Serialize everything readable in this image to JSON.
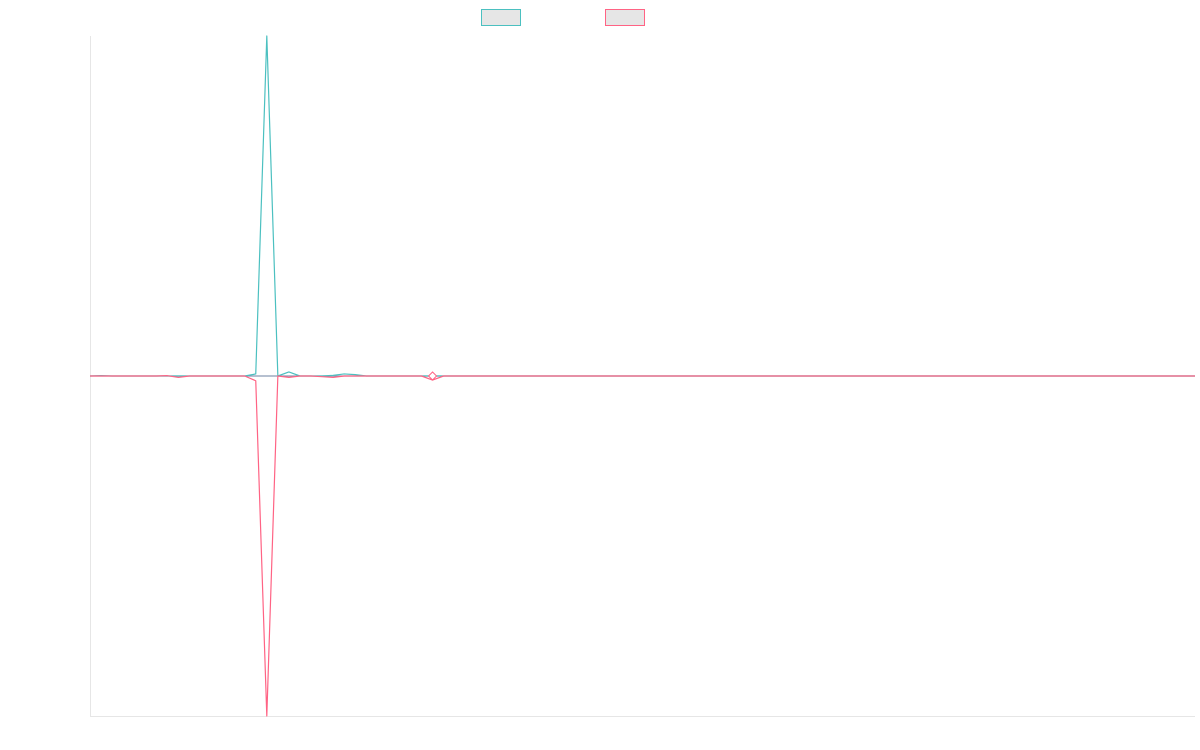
{
  "colors": {
    "series_a": "#4bc0c0",
    "series_b": "#ff6384",
    "legend_box_fill": "#e6e6e6",
    "axis": "#e6e6e6",
    "baseline": "#8a9bb4"
  },
  "chart_data": {
    "type": "line",
    "title": "",
    "xlabel": "",
    "ylabel": "",
    "grid": false,
    "legend_position": "top-center",
    "xlim": [
      0,
      100
    ],
    "ylim": [
      -50,
      50
    ],
    "x": [
      0,
      1,
      2,
      3,
      4,
      5,
      6,
      7,
      8,
      9,
      10,
      11,
      12,
      13,
      14,
      15,
      16,
      17,
      18,
      19,
      20,
      21,
      22,
      23,
      24,
      25,
      26,
      27,
      28,
      29,
      30,
      31,
      32,
      33,
      34,
      35,
      36,
      37,
      38,
      39,
      40,
      41,
      42,
      43,
      44,
      45,
      46,
      47,
      48,
      49,
      50,
      51,
      52,
      53,
      54,
      55,
      56,
      57,
      58,
      59,
      60,
      61,
      62,
      63,
      64,
      65,
      66,
      67,
      68,
      69,
      70,
      71,
      72,
      73,
      74,
      75,
      76,
      77,
      78,
      79,
      80,
      81,
      82,
      83,
      84,
      85,
      86,
      87,
      88,
      89,
      90,
      91,
      92,
      93,
      94,
      95,
      96,
      97,
      98,
      99,
      100
    ],
    "series": [
      {
        "name": "",
        "values": [
          0,
          0.05,
          0,
          0,
          0,
          0,
          0,
          0,
          0,
          0,
          0,
          0,
          0,
          0,
          0,
          0.3,
          50,
          0,
          0.6,
          0,
          0,
          0,
          0.1,
          0.3,
          0.2,
          0,
          0,
          0,
          0,
          0,
          0,
          0,
          0,
          0,
          0,
          0,
          0,
          0,
          0,
          0,
          0,
          0,
          0,
          0,
          0,
          0,
          0,
          0,
          0,
          0,
          0,
          0,
          0,
          0,
          0,
          0,
          0,
          0,
          0,
          0,
          0,
          0,
          0,
          0,
          0,
          0,
          0,
          0,
          0,
          0,
          0,
          0,
          0,
          0,
          0,
          0,
          0,
          0,
          0,
          0,
          0,
          0,
          0,
          0,
          0,
          0,
          0,
          0,
          0,
          0,
          0,
          0,
          0,
          0,
          0,
          0,
          0,
          0,
          0,
          0,
          0
        ]
      },
      {
        "name": "",
        "values": [
          0,
          0,
          0,
          0,
          0,
          0,
          0,
          0.05,
          -0.2,
          0,
          0,
          0,
          0,
          0,
          0,
          -0.7,
          -50,
          0,
          -0.2,
          0,
          0,
          -0.1,
          -0.2,
          0,
          0,
          0,
          0,
          0,
          0,
          0,
          0,
          -0.6,
          0,
          0,
          0,
          0,
          0,
          0,
          0,
          0,
          0,
          0,
          0,
          0,
          0,
          0,
          0,
          0,
          0,
          0,
          0,
          0,
          0,
          0,
          0,
          0,
          0,
          0,
          0,
          0,
          0,
          0,
          0,
          0,
          0,
          0,
          0,
          0,
          0,
          0,
          0,
          0,
          0,
          0,
          0,
          0,
          0,
          0,
          0,
          0,
          0,
          0,
          0,
          0,
          0,
          0,
          0,
          0,
          0,
          0,
          0,
          0,
          0,
          0,
          0,
          0,
          0,
          0,
          0,
          0,
          0
        ]
      }
    ]
  }
}
